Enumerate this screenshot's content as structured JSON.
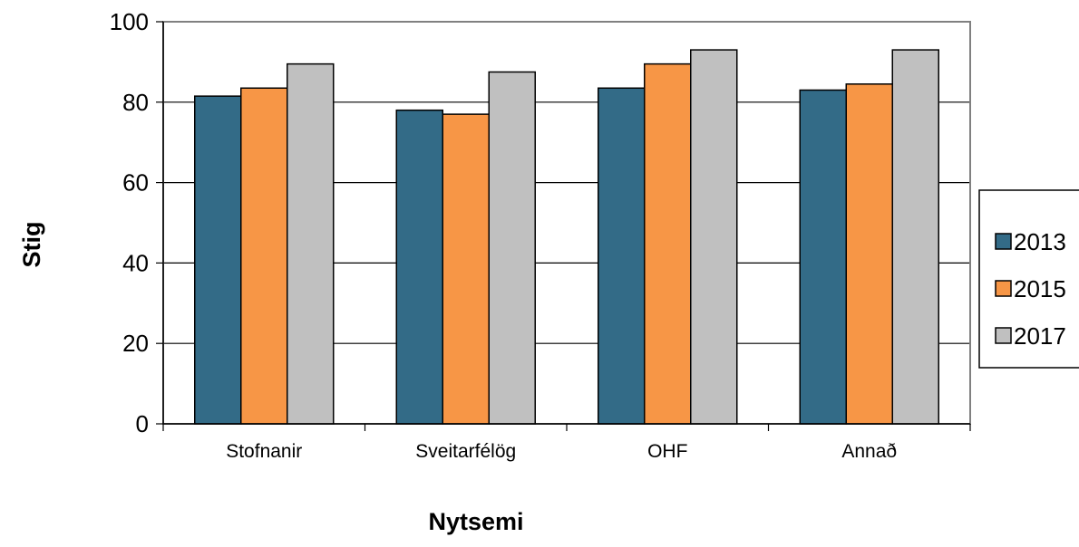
{
  "chart_data": {
    "type": "bar",
    "title": "",
    "xlabel": "Nytsemi",
    "ylabel": "Stig",
    "ylim": [
      0,
      100
    ],
    "yticks": [
      0,
      20,
      40,
      60,
      80,
      100
    ],
    "grid": "horizontal",
    "legend_position": "right",
    "categories": [
      "Stofnanir",
      "Sveitarfélög",
      "OHF",
      "Annað"
    ],
    "series": [
      {
        "name": "2013",
        "color": "#336b87",
        "values": [
          81.5,
          78,
          83.5,
          83
        ]
      },
      {
        "name": "2015",
        "color": "#f79646",
        "values": [
          83.5,
          77,
          89.5,
          84.5
        ]
      },
      {
        "name": "2017",
        "color": "#c0c0c0",
        "values": [
          89.5,
          87.5,
          93,
          93
        ]
      }
    ]
  }
}
